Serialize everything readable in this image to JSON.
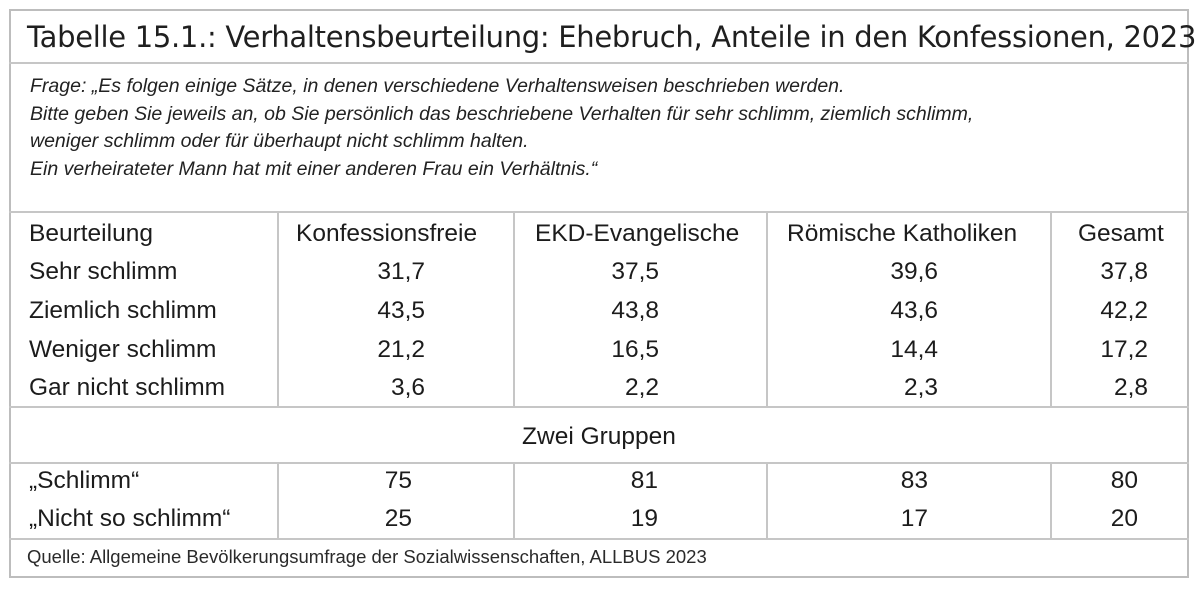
{
  "title": "Tabelle 15.1.: Verhaltensbeurteilung: Ehebruch, Anteile in den Konfessionen, 2023",
  "question_lines": [
    "Frage: „Es folgen einige Sätze, in denen verschiedene Verhaltensweisen beschrieben werden.",
    "Bitte geben Sie jeweils an, ob Sie persönlich das beschriebene Verhalten für sehr schlimm, ziemlich schlimm,",
    "weniger schlimm oder für überhaupt nicht schlimm halten.",
    "Ein verheirateter Mann hat mit einer anderen Frau ein Verhältnis.“"
  ],
  "columns": [
    "Beurteilung",
    "Konfessionsfreie",
    "EKD-Evangelische",
    "Römische Katholiken",
    "Gesamt"
  ],
  "rows": [
    {
      "label": "Sehr schlimm",
      "values": [
        "31,7",
        "37,5",
        "39,6",
        "37,8"
      ]
    },
    {
      "label": "Ziemlich schlimm",
      "values": [
        "43,5",
        "43,8",
        "43,6",
        "42,2"
      ]
    },
    {
      "label": "Weniger schlimm",
      "values": [
        "21,2",
        "16,5",
        "14,4",
        "17,2"
      ]
    },
    {
      "label": "Gar nicht schlimm",
      "values": [
        "3,6",
        "2,2",
        "2,3",
        "2,8"
      ]
    }
  ],
  "group_heading": "Zwei Gruppen",
  "group_rows": [
    {
      "label": "„Schlimm“",
      "values": [
        "75",
        "81",
        "83",
        "80"
      ]
    },
    {
      "label": "„Nicht so schlimm“",
      "values": [
        "25",
        "19",
        "17",
        "20"
      ]
    }
  ],
  "source": "Quelle: Allgemeine Bevölkerungsumfrage der Sozialwissenschaften, ALLBUS 2023"
}
